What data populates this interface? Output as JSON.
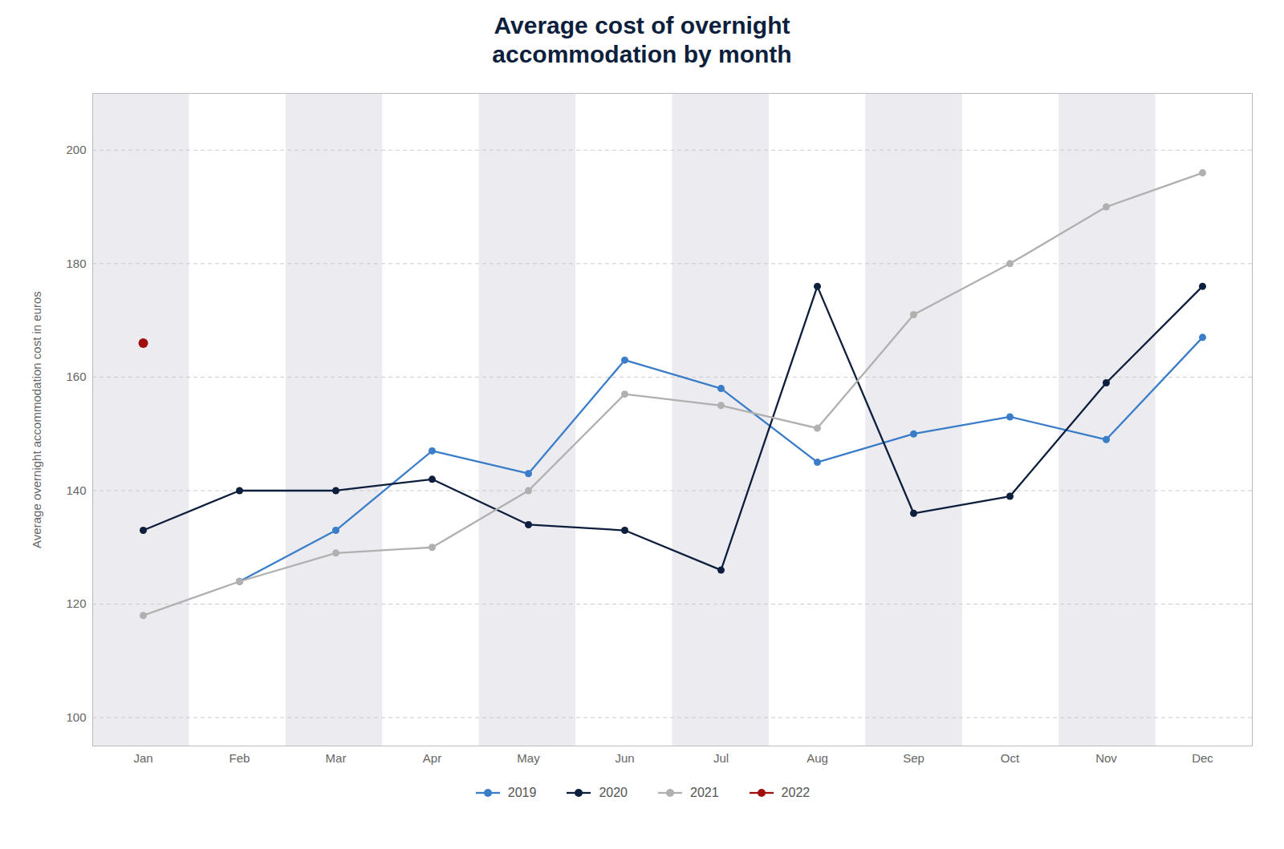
{
  "chart_data": {
    "type": "line",
    "title": "Average cost of overnight\naccommodation by month",
    "ylabel": "Average overnight accommodation cost in euros",
    "categories": [
      "Jan",
      "Feb",
      "Mar",
      "Apr",
      "May",
      "Jun",
      "Jul",
      "Aug",
      "Sep",
      "Oct",
      "Nov",
      "Dec"
    ],
    "series": [
      {
        "name": "2019",
        "color": "#3a7dc9",
        "values": [
          null,
          124,
          133,
          147,
          143,
          163,
          158,
          145,
          150,
          153,
          149,
          167
        ]
      },
      {
        "name": "2020",
        "color": "#0d1f3c",
        "values": [
          133,
          140,
          140,
          142,
          134,
          133,
          126,
          176,
          136,
          139,
          159,
          176
        ]
      },
      {
        "name": "2021",
        "color": "#b0b0b0",
        "values": [
          118,
          124,
          129,
          130,
          140,
          157,
          155,
          151,
          171,
          180,
          190,
          196
        ]
      },
      {
        "name": "2022",
        "color": "#a01010",
        "values": [
          166,
          null,
          null,
          null,
          null,
          null,
          null,
          null,
          null,
          null,
          null,
          null
        ]
      }
    ],
    "ylim": [
      95,
      210
    ],
    "yticks": [
      100,
      120,
      140,
      160,
      180,
      200
    ],
    "grid": true,
    "legend": "bottom",
    "marker": "circle"
  }
}
